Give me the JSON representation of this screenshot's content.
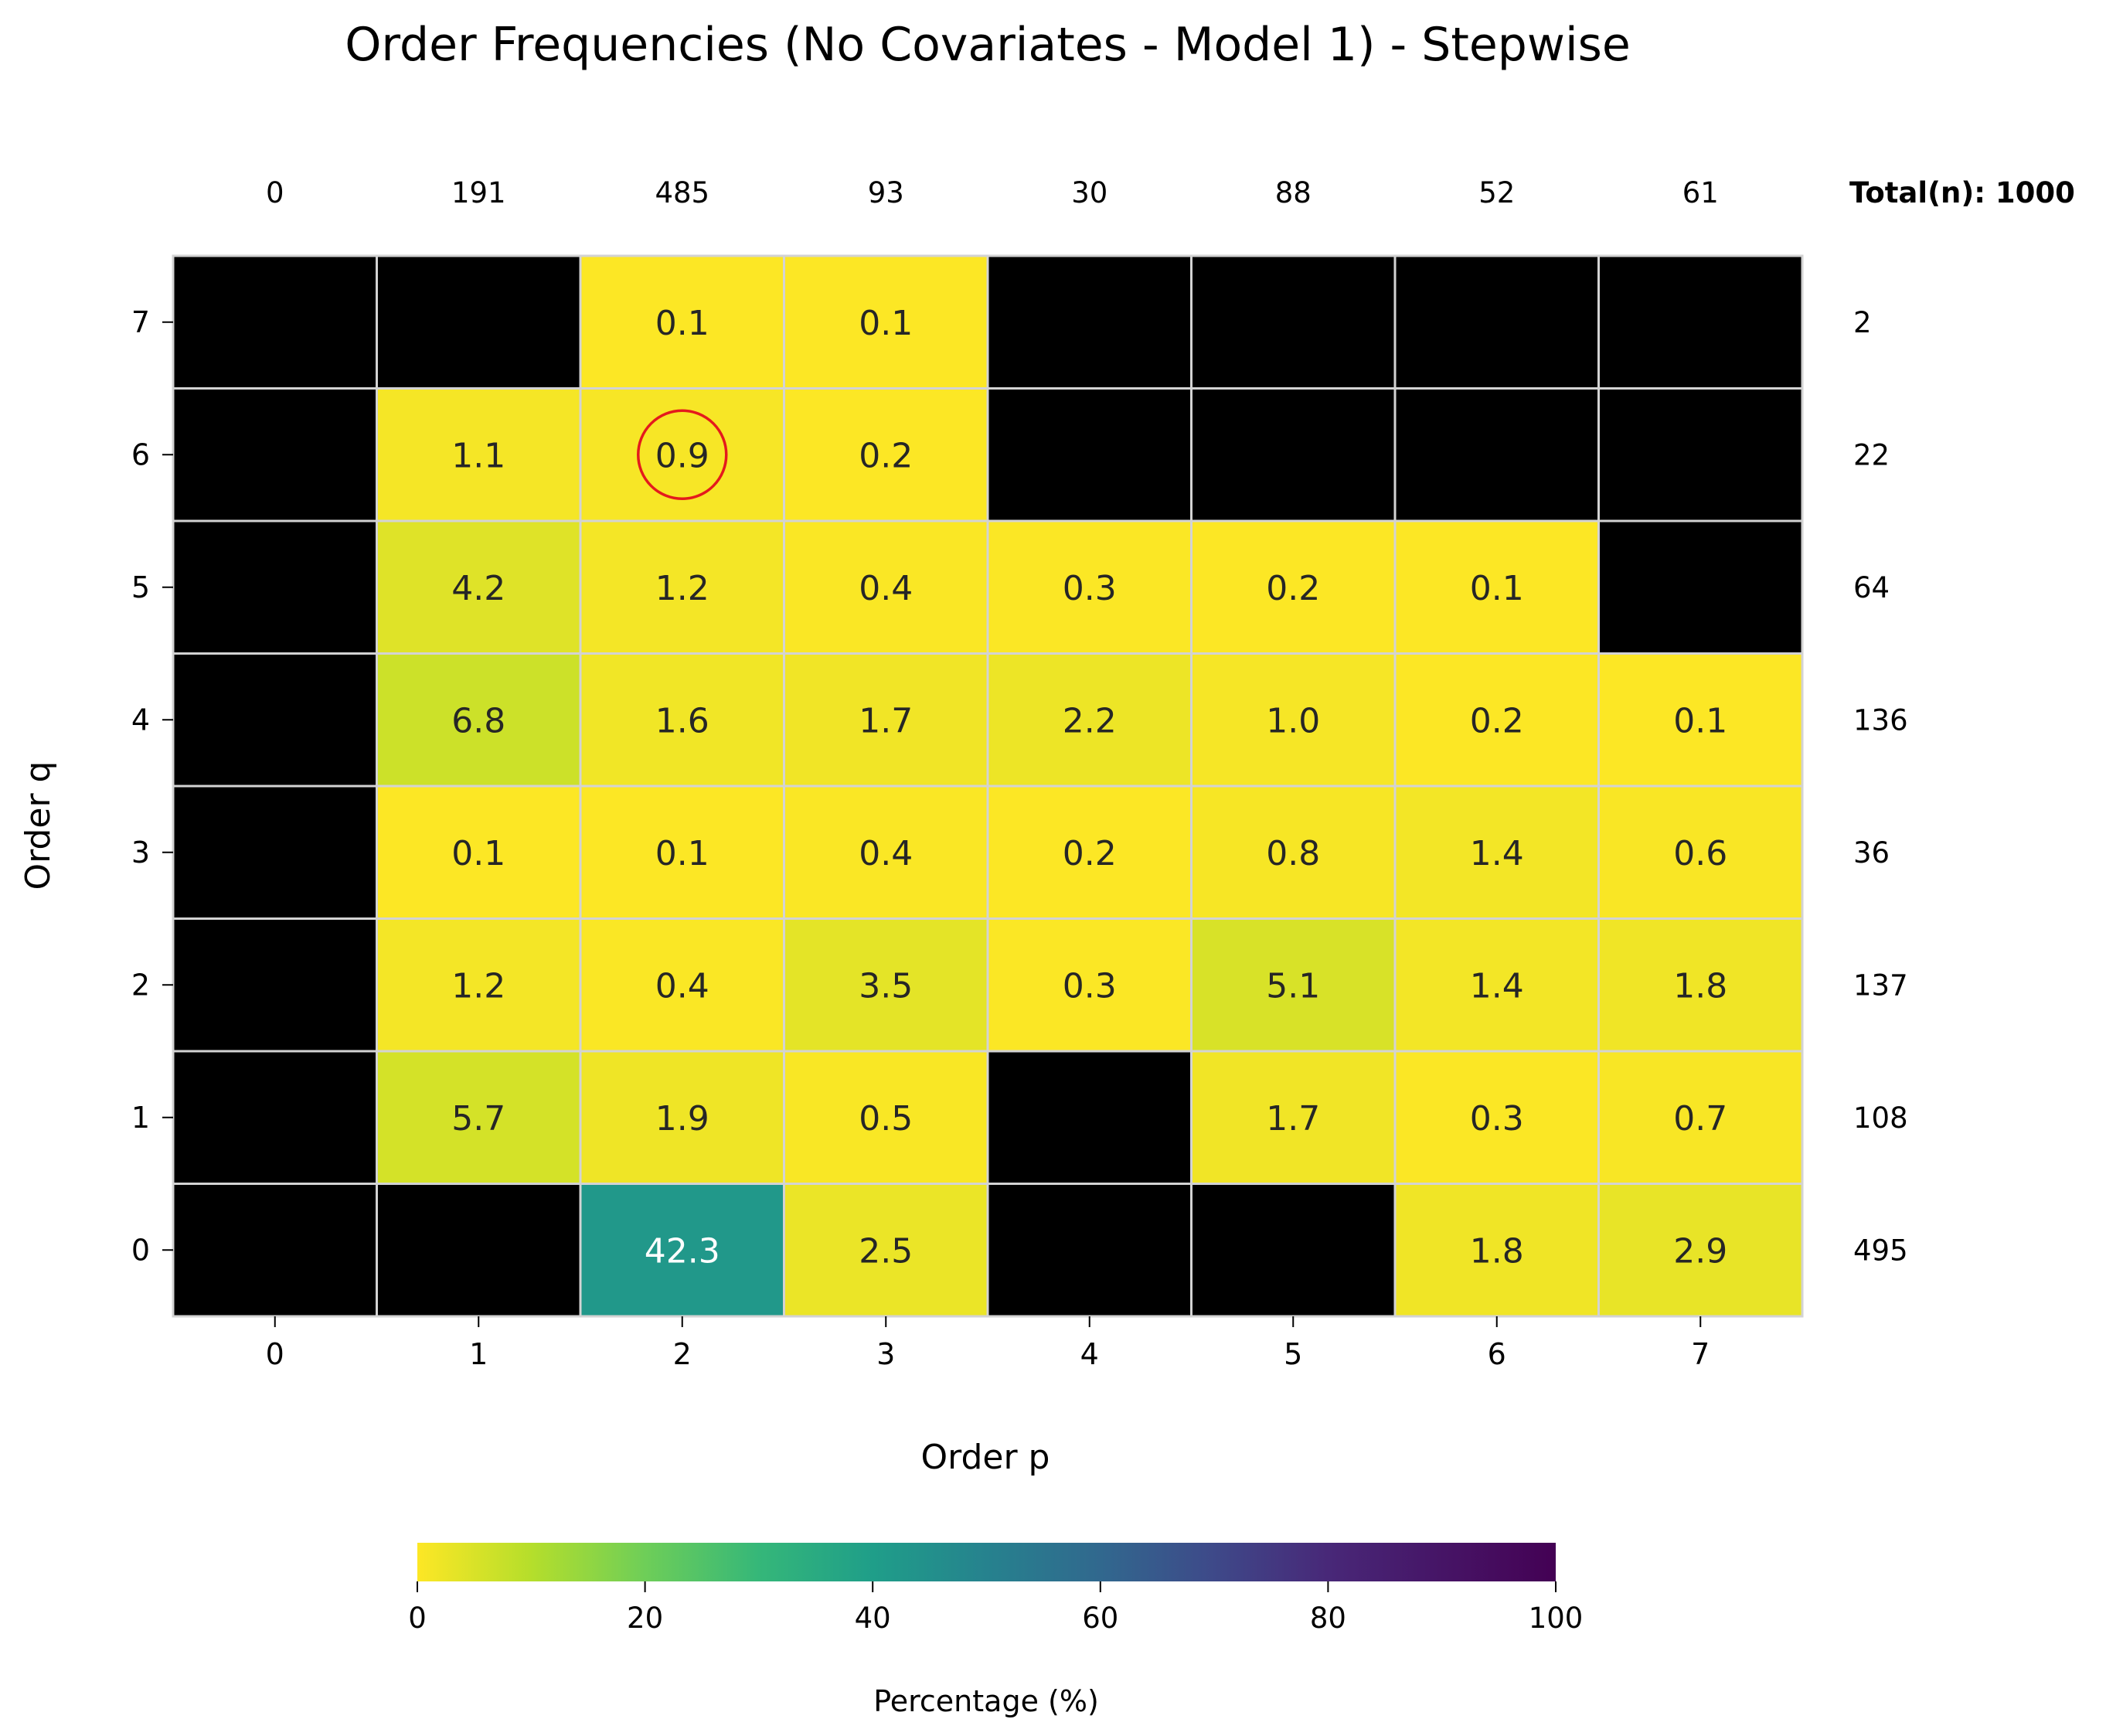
{
  "chart_data": {
    "type": "heatmap",
    "title": "Order Frequencies (No Covariates - Model 1) - Stepwise",
    "xlabel": "Order p",
    "ylabel": "Order q",
    "x_categories": [
      "0",
      "1",
      "2",
      "3",
      "4",
      "5",
      "6",
      "7"
    ],
    "y_categories": [
      "7",
      "6",
      "5",
      "4",
      "3",
      "2",
      "1",
      "0"
    ],
    "values": [
      [
        null,
        null,
        0.1,
        0.1,
        null,
        null,
        null,
        null
      ],
      [
        null,
        1.1,
        0.9,
        0.2,
        null,
        null,
        null,
        null
      ],
      [
        null,
        4.2,
        1.2,
        0.4,
        0.3,
        0.2,
        0.1,
        null
      ],
      [
        null,
        6.8,
        1.6,
        1.7,
        2.2,
        1.0,
        0.2,
        0.1
      ],
      [
        null,
        0.1,
        0.1,
        0.4,
        0.2,
        0.8,
        1.4,
        0.6
      ],
      [
        null,
        1.2,
        0.4,
        3.5,
        0.3,
        5.1,
        1.4,
        1.8
      ],
      [
        null,
        5.7,
        1.9,
        0.5,
        null,
        1.7,
        0.3,
        0.7
      ],
      [
        null,
        null,
        42.3,
        2.5,
        null,
        null,
        1.8,
        2.9
      ]
    ],
    "column_totals": [
      "0",
      "191",
      "485",
      "93",
      "30",
      "88",
      "52",
      "61"
    ],
    "row_totals": [
      "2",
      "22",
      "64",
      "136",
      "36",
      "137",
      "108",
      "495"
    ],
    "total_label": "Total(n): 1000",
    "highlighted_cell": {
      "p": "2",
      "q": "6",
      "value": 0.9
    },
    "empty_cell_color": "#000000",
    "colormap": "viridis_r",
    "colorbar": {
      "label": "Percentage (%)",
      "range": [
        0,
        100
      ],
      "ticks": [
        "0",
        "20",
        "40",
        "60",
        "80",
        "100"
      ],
      "orientation": "horizontal",
      "placement": "bottom"
    },
    "grid_line_color": "#d3d3d3",
    "highlight_color": "#e41a1c"
  }
}
